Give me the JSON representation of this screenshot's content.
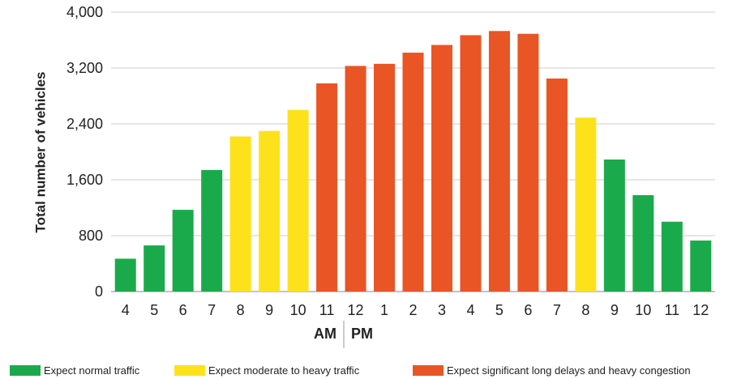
{
  "chart_data": {
    "type": "bar",
    "ylabel": "Total number of vehicles",
    "ylim": [
      0,
      4000
    ],
    "yticks": [
      "0",
      "800",
      "1,600",
      "2,400",
      "3,200",
      "4,000"
    ],
    "ytick_values": [
      0,
      800,
      1600,
      2400,
      3200,
      4000
    ],
    "grid": "horizontal",
    "categories": [
      "4",
      "5",
      "6",
      "7",
      "8",
      "9",
      "10",
      "11",
      "12",
      "1",
      "2",
      "3",
      "4",
      "5",
      "6",
      "7",
      "8",
      "9",
      "10",
      "11",
      "12"
    ],
    "values": [
      470,
      660,
      1170,
      1740,
      2220,
      2300,
      2600,
      2980,
      3230,
      3260,
      3420,
      3530,
      3670,
      3730,
      3690,
      3050,
      2490,
      1890,
      1380,
      1000,
      730
    ],
    "levels": [
      "normal",
      "normal",
      "normal",
      "normal",
      "moderate",
      "moderate",
      "moderate",
      "heavy",
      "heavy",
      "heavy",
      "heavy",
      "heavy",
      "heavy",
      "heavy",
      "heavy",
      "heavy",
      "moderate",
      "normal",
      "normal",
      "normal",
      "normal"
    ],
    "am_label": "AM",
    "pm_label": "PM",
    "legend": [
      {
        "key": "normal",
        "label": "Expect normal traffic",
        "color": "#1aaa4b"
      },
      {
        "key": "moderate",
        "label": "Expect moderate to heavy traffic",
        "color": "#fde21b"
      },
      {
        "key": "heavy",
        "label": "Expect significant long delays and heavy congestion",
        "color": "#e95524"
      }
    ]
  }
}
